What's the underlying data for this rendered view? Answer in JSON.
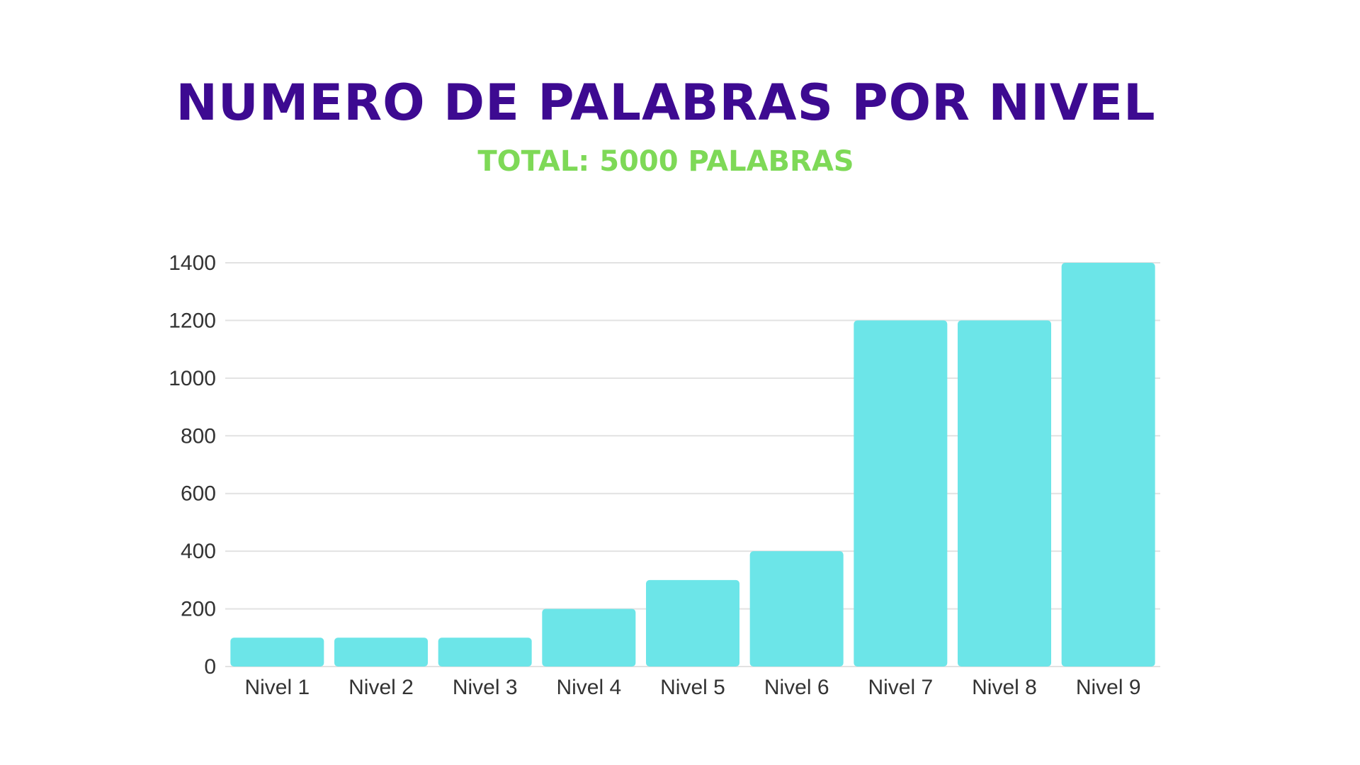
{
  "colors": {
    "title": "#3d0a91",
    "subtitle": "#7ed957",
    "bar": "#6ce5e8",
    "grid": "#e2e2e2",
    "text": "#333333"
  },
  "chart_data": {
    "type": "bar",
    "title": "NUMERO DE PALABRAS POR NIVEL",
    "subtitle": "TOTAL: 5000 PALABRAS",
    "categories": [
      "Nivel 1",
      "Nivel 2",
      "Nivel 3",
      "Nivel 4",
      "Nivel 5",
      "Nivel 6",
      "Nivel 7",
      "Nivel 8",
      "Nivel 9"
    ],
    "values": [
      100,
      100,
      100,
      200,
      300,
      400,
      1200,
      1200,
      1400
    ],
    "ylim": [
      0,
      1400
    ],
    "yticks": [
      "0",
      "200",
      "400",
      "600",
      "800",
      "1000",
      "1200",
      "1400"
    ],
    "xlabel": "",
    "ylabel": "",
    "grid": true,
    "legend": "none"
  }
}
